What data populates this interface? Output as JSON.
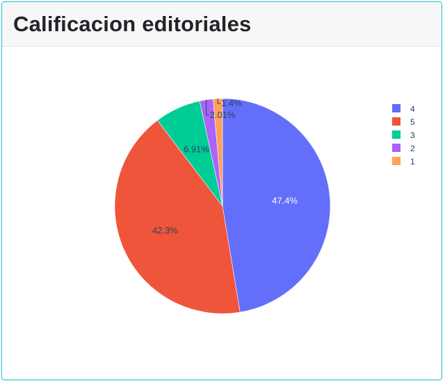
{
  "header": {
    "title": "Calificacion editoriales"
  },
  "chart_data": {
    "type": "pie",
    "title": "",
    "categories": [
      "4",
      "5",
      "3",
      "2",
      "1"
    ],
    "values": [
      47.4,
      42.3,
      6.91,
      2.01,
      1.4
    ],
    "labels": [
      "47.4%",
      "42.3%",
      "6.91%",
      "2.01%",
      "1.4%"
    ],
    "colors": [
      "#636efa",
      "#ef553b",
      "#00cc96",
      "#ab63fa",
      "#ffa15a"
    ],
    "legend": {
      "placement": "top-right",
      "order": [
        "4",
        "5",
        "3",
        "2",
        "1"
      ]
    }
  }
}
